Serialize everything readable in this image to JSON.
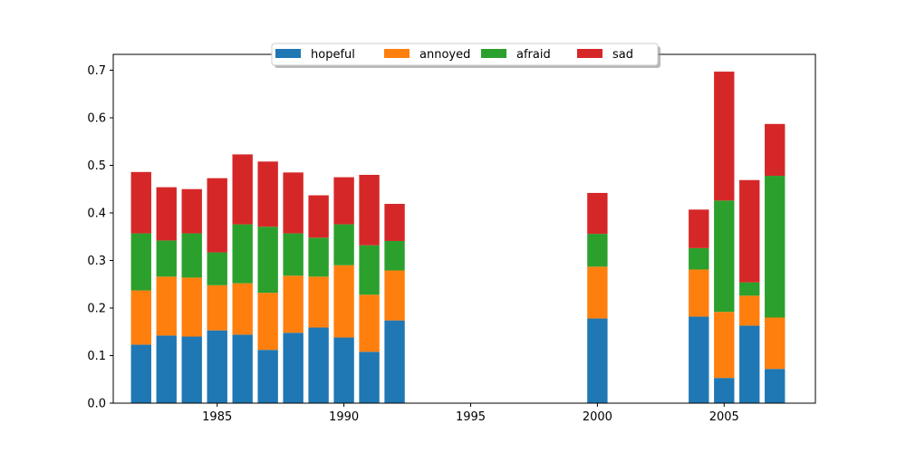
{
  "chart_data": {
    "type": "bar",
    "stacked": true,
    "x": [
      1982,
      1983,
      1984,
      1985,
      1986,
      1987,
      1988,
      1989,
      1990,
      1991,
      1992,
      2000,
      2004,
      2005,
      2006,
      2007
    ],
    "series": [
      {
        "name": "hopeful",
        "color": "#1f77b4",
        "values": [
          0.123,
          0.142,
          0.14,
          0.153,
          0.144,
          0.112,
          0.148,
          0.159,
          0.138,
          0.108,
          0.174,
          0.178,
          0.182,
          0.053,
          0.163,
          0.072
        ]
      },
      {
        "name": "annoyed",
        "color": "#ff7f0e",
        "values": [
          0.114,
          0.124,
          0.124,
          0.095,
          0.108,
          0.12,
          0.12,
          0.107,
          0.152,
          0.12,
          0.105,
          0.109,
          0.099,
          0.139,
          0.063,
          0.108
        ]
      },
      {
        "name": "afraid",
        "color": "#2ca02c",
        "values": [
          0.12,
          0.076,
          0.093,
          0.069,
          0.124,
          0.139,
          0.089,
          0.082,
          0.086,
          0.104,
          0.062,
          0.069,
          0.045,
          0.234,
          0.028,
          0.298
        ]
      },
      {
        "name": "sad",
        "color": "#d62728",
        "values": [
          0.129,
          0.112,
          0.093,
          0.156,
          0.147,
          0.137,
          0.128,
          0.089,
          0.099,
          0.148,
          0.078,
          0.086,
          0.081,
          0.271,
          0.215,
          0.109
        ]
      }
    ],
    "title": "",
    "xlabel": "",
    "ylabel": "",
    "xlim": [
      1980.9,
      2008.6
    ],
    "ylim": [
      0,
      0.7333
    ],
    "xticks": [
      1985,
      1990,
      1995,
      2000,
      2005
    ],
    "yticks": [
      0.0,
      0.1,
      0.2,
      0.3,
      0.4,
      0.5,
      0.6,
      0.7
    ],
    "xtick_labels": [
      "1985",
      "1990",
      "1995",
      "2000",
      "2005"
    ],
    "ytick_labels": [
      "0.0",
      "0.1",
      "0.2",
      "0.3",
      "0.4",
      "0.5",
      "0.6",
      "0.7"
    ],
    "bar_width": 0.8,
    "grid": false,
    "legend": {
      "position": "top-center",
      "columns": 4,
      "shadow": true
    }
  }
}
